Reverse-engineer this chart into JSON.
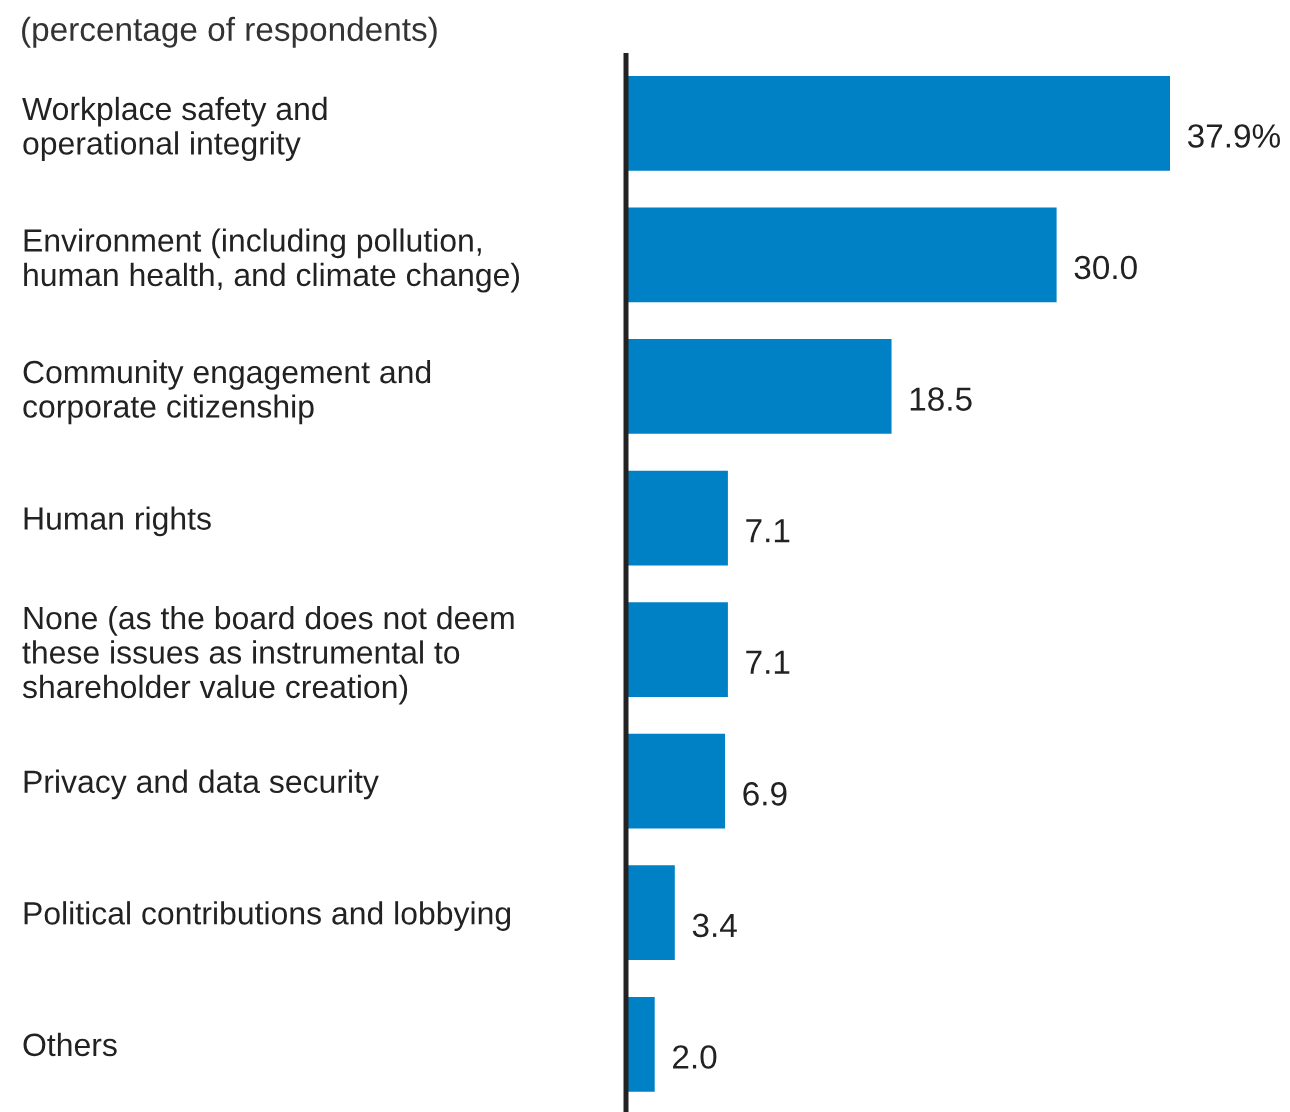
{
  "chart_data": {
    "type": "bar",
    "orientation": "horizontal",
    "subtitle": "(percentage of respondents)",
    "categories": [
      "Workplace safety and\noperational integrity",
      "Environment (including pollution,\nhuman health, and climate change)",
      "Community engagement and\ncorporate citizenship",
      "Human rights",
      "None (as the board does not deem\nthese issues as instrumental to\nshareholder value creation)",
      "Privacy and data security",
      "Political contributions and lobbying",
      "Others"
    ],
    "values": [
      37.9,
      30.0,
      18.5,
      7.1,
      7.1,
      6.9,
      3.4,
      2.0
    ],
    "value_labels": [
      "37.9%",
      "30.0",
      "18.5",
      "7.1",
      "7.1",
      "6.9",
      "3.4",
      "2.0"
    ],
    "color": "#0081c6",
    "grid": false,
    "legend": false
  }
}
